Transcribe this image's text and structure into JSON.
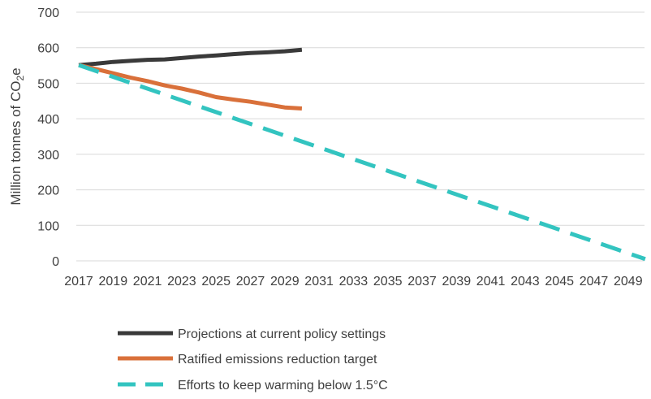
{
  "chart_data": {
    "type": "line",
    "ylabel": "Million tonnes of CO2e",
    "ylabel_parts": {
      "main": "Million tonnes of CO",
      "sub": "2",
      "tail": "e"
    },
    "ylim": [
      0,
      700
    ],
    "yticks": [
      0,
      100,
      200,
      300,
      400,
      500,
      600,
      700
    ],
    "xlim": [
      2017,
      2050
    ],
    "xticks": [
      2017,
      2019,
      2021,
      2023,
      2025,
      2027,
      2029,
      2031,
      2033,
      2035,
      2037,
      2039,
      2041,
      2043,
      2045,
      2047,
      2049
    ],
    "grid": true,
    "legend_position": "bottom",
    "series": [
      {
        "name": "Projections at current policy settings",
        "color": "#3a3a3a",
        "dash": "solid",
        "x": [
          2017,
          2018,
          2019,
          2020,
          2021,
          2022,
          2023,
          2024,
          2025,
          2026,
          2027,
          2028,
          2029,
          2030
        ],
        "values": [
          551,
          555,
          560,
          563,
          566,
          567,
          571,
          575,
          578,
          582,
          585,
          587,
          590,
          594
        ]
      },
      {
        "name": "Ratified emissions reduction target",
        "color": "#d9703a",
        "dash": "solid",
        "x": [
          2017,
          2018,
          2019,
          2020,
          2021,
          2022,
          2023,
          2024,
          2025,
          2026,
          2027,
          2028,
          2029,
          2030
        ],
        "values": [
          551,
          540,
          528,
          516,
          506,
          494,
          485,
          474,
          461,
          454,
          448,
          440,
          432,
          429
        ]
      },
      {
        "name": "Efforts to keep warming below 1.5°C",
        "color": "#33c4c0",
        "dash": "dashed",
        "x": [
          2017,
          2050
        ],
        "values": [
          551,
          5
        ]
      }
    ]
  }
}
